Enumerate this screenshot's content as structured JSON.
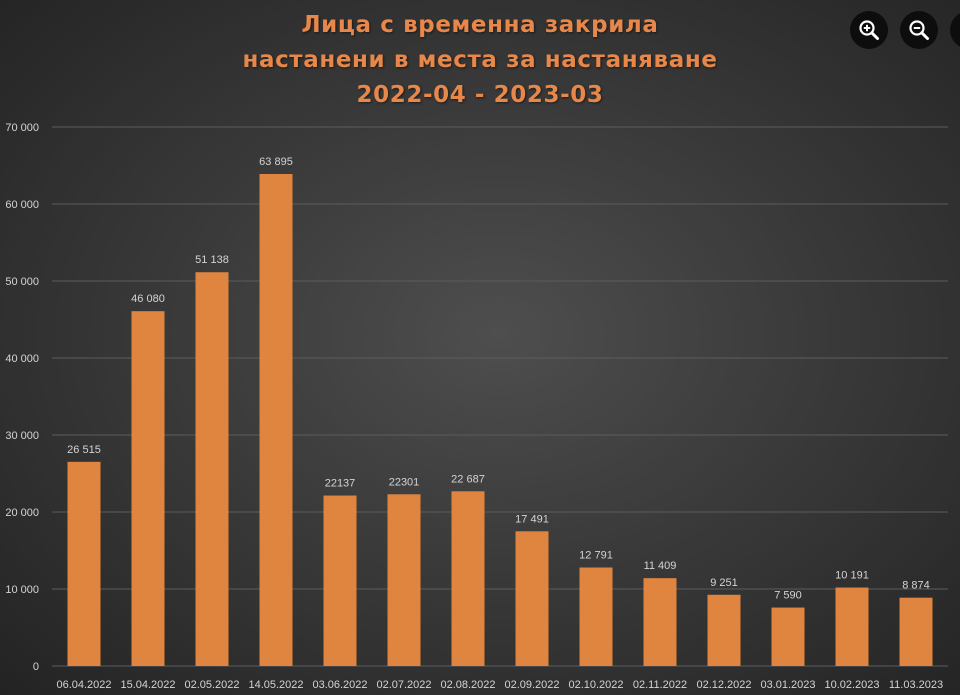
{
  "colors": {
    "bar": "#e08540",
    "title": "#e8874a",
    "axis_text": "#d4d4d4",
    "gridline": "#5c5c5c",
    "icon_fg": "#ffffff",
    "icon_bg": "#0d0d0d"
  },
  "controls": {
    "zoom_in_icon": "zoom-in-icon",
    "zoom_out_icon": "zoom-out-icon"
  },
  "chart_data": {
    "type": "bar",
    "title": [
      "Лица с временна закрила",
      "настанени в места за настаняване",
      "2022-04 - 2023-03"
    ],
    "xlabel": "",
    "ylabel": "",
    "ylim": [
      0,
      70000
    ],
    "yticks": [
      0,
      10000,
      20000,
      30000,
      40000,
      50000,
      60000,
      70000
    ],
    "ytick_labels": [
      "0",
      "10 000",
      "20 000",
      "30 000",
      "40 000",
      "50 000",
      "60 000",
      "70 000"
    ],
    "grid": true,
    "legend": "none",
    "categories": [
      "06.04.2022",
      "15.04.2022",
      "02.05.2022",
      "14.05.2022",
      "03.06.2022",
      "02.07.2022",
      "02.08.2022",
      "02.09.2022",
      "02.10.2022",
      "02.11.2022",
      "02.12.2022",
      "03.01.2023",
      "10.02.2023",
      "11.03.2023"
    ],
    "values": [
      26515,
      46080,
      51138,
      63895,
      22137,
      22301,
      22687,
      17491,
      12791,
      11409,
      9251,
      7590,
      10191,
      8874
    ],
    "data_labels": [
      "26 515",
      "46 080",
      "51 138",
      "63 895",
      "22137",
      "22301",
      "22 687",
      "17 491",
      "12 791",
      "11 409",
      "9 251",
      "7 590",
      "10 191",
      "8 874"
    ]
  }
}
